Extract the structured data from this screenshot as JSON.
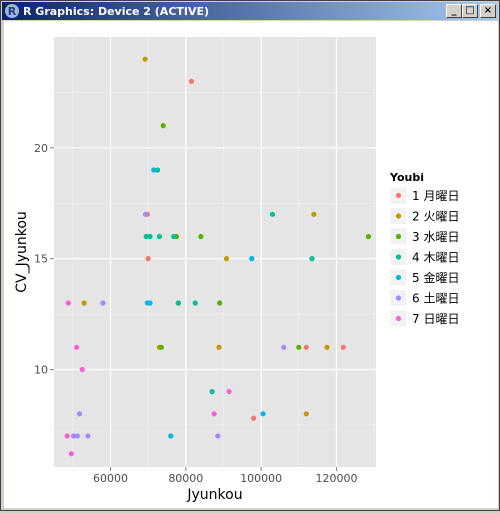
{
  "window": {
    "title": "R Graphics: Device 2 (ACTIVE)",
    "logo_letter": "R",
    "buttons": {
      "minimize": "_",
      "maximize": "□",
      "close": "×"
    }
  },
  "legend": {
    "title": "Youbi",
    "items": [
      {
        "label": "1 月曜日",
        "color": "#F8766D"
      },
      {
        "label": "2 火曜日",
        "color": "#C49A00"
      },
      {
        "label": "3 水曜日",
        "color": "#53B400"
      },
      {
        "label": "4 木曜日",
        "color": "#00C094"
      },
      {
        "label": "5 金曜日",
        "color": "#00B6EB"
      },
      {
        "label": "6 土曜日",
        "color": "#A58AFF"
      },
      {
        "label": "7 日曜日",
        "color": "#FB61D7"
      }
    ]
  },
  "chart_data": {
    "type": "scatter",
    "xlabel": "Jyunkou",
    "ylabel": "CV_Jyunkou",
    "xlim": [
      45000,
      130500
    ],
    "ylim": [
      5.6,
      25.0
    ],
    "xticks": [
      60000,
      80000,
      100000,
      120000
    ],
    "xtick_labels": [
      "60000",
      "80000",
      "100000",
      "120000"
    ],
    "yticks": [
      10,
      15,
      20
    ],
    "ytick_labels": [
      "10",
      "15",
      "20"
    ],
    "grid": true,
    "legend_position": "right",
    "series": [
      {
        "name": "1 月曜日",
        "color": "#F8766D",
        "points": [
          [
            81500,
            23.0
          ],
          [
            69800,
            17.0
          ],
          [
            70000,
            15.0
          ],
          [
            98000,
            7.8
          ],
          [
            112000,
            11.0
          ],
          [
            121800,
            11.0
          ]
        ]
      },
      {
        "name": "2 火曜日",
        "color": "#C49A00",
        "points": [
          [
            69200,
            24.0
          ],
          [
            53000,
            13.0
          ],
          [
            73000,
            11.0
          ],
          [
            88800,
            11.0
          ],
          [
            90800,
            15.0
          ],
          [
            112000,
            8.0
          ],
          [
            114000,
            17.0
          ],
          [
            117500,
            11.0
          ]
        ]
      },
      {
        "name": "3 水曜日",
        "color": "#53B400",
        "points": [
          [
            74000,
            21.0
          ],
          [
            77500,
            16.0
          ],
          [
            84000,
            16.0
          ],
          [
            78000,
            13.0
          ],
          [
            89000,
            13.0
          ],
          [
            110000,
            11.0
          ],
          [
            128500,
            16.0
          ],
          [
            73500,
            11.0
          ]
        ]
      },
      {
        "name": "4 木曜日",
        "color": "#00C094",
        "points": [
          [
            72500,
            19.0
          ],
          [
            69500,
            16.0
          ],
          [
            70500,
            16.0
          ],
          [
            73000,
            16.0
          ],
          [
            76800,
            16.0
          ],
          [
            78000,
            13.0
          ],
          [
            82500,
            13.0
          ],
          [
            87000,
            9.0
          ],
          [
            103000,
            17.0
          ],
          [
            113500,
            15.0
          ]
        ]
      },
      {
        "name": "5 金曜日",
        "color": "#00B6EB",
        "points": [
          [
            71500,
            19.0
          ],
          [
            69800,
            13.0
          ],
          [
            70500,
            13.0
          ],
          [
            76000,
            7.0
          ],
          [
            97500,
            15.0
          ],
          [
            100500,
            8.0
          ]
        ]
      },
      {
        "name": "6 土曜日",
        "color": "#A58AFF",
        "points": [
          [
            69300,
            17.0
          ],
          [
            58000,
            13.0
          ],
          [
            51800,
            8.0
          ],
          [
            50200,
            7.0
          ],
          [
            51200,
            7.0
          ],
          [
            54000,
            7.0
          ],
          [
            88500,
            7.0
          ],
          [
            106000,
            11.0
          ]
        ]
      },
      {
        "name": "7 日曜日",
        "color": "#FB61D7",
        "points": [
          [
            48800,
            13.0
          ],
          [
            51000,
            11.0
          ],
          [
            52500,
            10.0
          ],
          [
            48500,
            7.0
          ],
          [
            49600,
            6.2
          ],
          [
            87500,
            8.0
          ],
          [
            91500,
            9.0
          ]
        ]
      }
    ]
  }
}
